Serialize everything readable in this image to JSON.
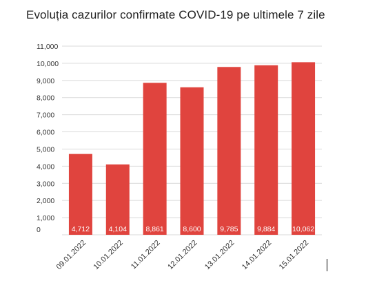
{
  "chart_data": {
    "type": "bar",
    "title": "Evoluția cazurilor confirmate COVID-19 pe ultimele 7 zile",
    "categories": [
      "09.01.2022",
      "10.01.2022",
      "11.01.2022",
      "12.01.2022",
      "13.01.2022",
      "14.01.2022",
      "15.01.2022"
    ],
    "values": [
      4712,
      4104,
      8861,
      8600,
      9785,
      9884,
      10062
    ],
    "data_labels": [
      "4,712",
      "4,104",
      "8,861",
      "8,600",
      "9,785",
      "9,884",
      "10,062"
    ],
    "yticks": [
      "0",
      "1,000",
      "2,000",
      "3,000",
      "4,000",
      "5,000",
      "6,000",
      "7,000",
      "8,000",
      "9,000",
      "10,000",
      "11,000"
    ],
    "ylim": [
      0,
      11000
    ],
    "xlabel": "",
    "ylabel": "",
    "grid": true,
    "legend": "none",
    "bar_color": "#e0443e"
  }
}
